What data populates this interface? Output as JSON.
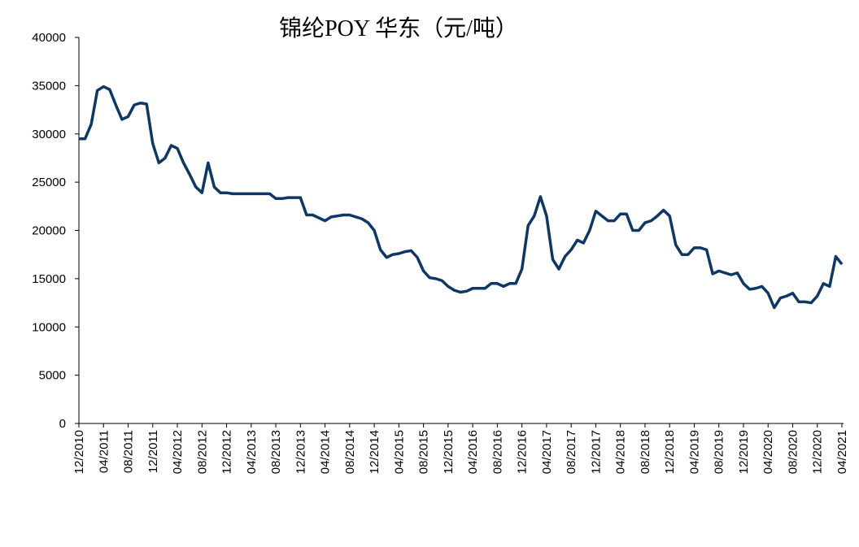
{
  "chart_data": {
    "type": "line",
    "title": "锦纶POY 华东（元/吨）",
    "categories": [
      "12/2010",
      null,
      null,
      null,
      "04/2011",
      null,
      null,
      null,
      "08/2011",
      null,
      null,
      null,
      "12/2011",
      null,
      null,
      null,
      "04/2012",
      null,
      null,
      null,
      "08/2012",
      null,
      null,
      null,
      "12/2012",
      null,
      null,
      null,
      "04/2013",
      null,
      null,
      null,
      "08/2013",
      null,
      null,
      null,
      "12/2013",
      null,
      null,
      null,
      "04/2014",
      null,
      null,
      null,
      "08/2014",
      null,
      null,
      null,
      "12/2014",
      null,
      null,
      null,
      "04/2015",
      null,
      null,
      null,
      "08/2015",
      null,
      null,
      null,
      "12/2015",
      null,
      null,
      null,
      "04/2016",
      null,
      null,
      null,
      "08/2016",
      null,
      null,
      null,
      "12/2016",
      null,
      null,
      null,
      "04/2017",
      null,
      null,
      null,
      "08/2017",
      null,
      null,
      null,
      "12/2017",
      null,
      null,
      null,
      "04/2018",
      null,
      null,
      null,
      "08/2018",
      null,
      null,
      null,
      "12/2018",
      null,
      null,
      null,
      "04/2019",
      null,
      null,
      null,
      "08/2019",
      null,
      null,
      null,
      "12/2019",
      null,
      null,
      null,
      "04/2020",
      null,
      null,
      null,
      "08/2020",
      null,
      null,
      null,
      "12/2020",
      null,
      null,
      null,
      "04/2021"
    ],
    "values": [
      29500,
      29500,
      31000,
      34500,
      34900,
      34600,
      33000,
      31500,
      31800,
      33000,
      33200,
      33100,
      29000,
      27000,
      27500,
      28800,
      28500,
      27000,
      25800,
      24500,
      23900,
      27000,
      24500,
      23900,
      23900,
      23800,
      23800,
      23800,
      23800,
      23800,
      23800,
      23800,
      23300,
      23300,
      23400,
      23400,
      23400,
      21600,
      21600,
      21300,
      21000,
      21400,
      21500,
      21600,
      21600,
      21400,
      21200,
      20800,
      20000,
      18000,
      17200,
      17500,
      17600,
      17800,
      17900,
      17200,
      15800,
      15100,
      15000,
      14800,
      14200,
      13800,
      13600,
      13700,
      14000,
      14000,
      14000,
      14500,
      14500,
      14200,
      14500,
      14500,
      16000,
      20500,
      21500,
      23500,
      21500,
      17000,
      16000,
      17300,
      18000,
      19000,
      18700,
      20000,
      22000,
      21500,
      21000,
      21000,
      21700,
      21700,
      20000,
      20000,
      20800,
      21000,
      21500,
      22100,
      21500,
      18500,
      17500,
      17500,
      18200,
      18200,
      18000,
      15500,
      15800,
      15600,
      15400,
      15600,
      14500,
      13900,
      14000,
      14200,
      13500,
      12000,
      13000,
      13200,
      13500,
      12600,
      12600,
      12500,
      13200,
      14500,
      14200,
      17300,
      16500
    ],
    "color": "#0d3766",
    "ylim": [
      0,
      40000
    ],
    "yticks": [
      0,
      5000,
      10000,
      15000,
      20000,
      25000,
      30000,
      35000,
      40000
    ]
  }
}
